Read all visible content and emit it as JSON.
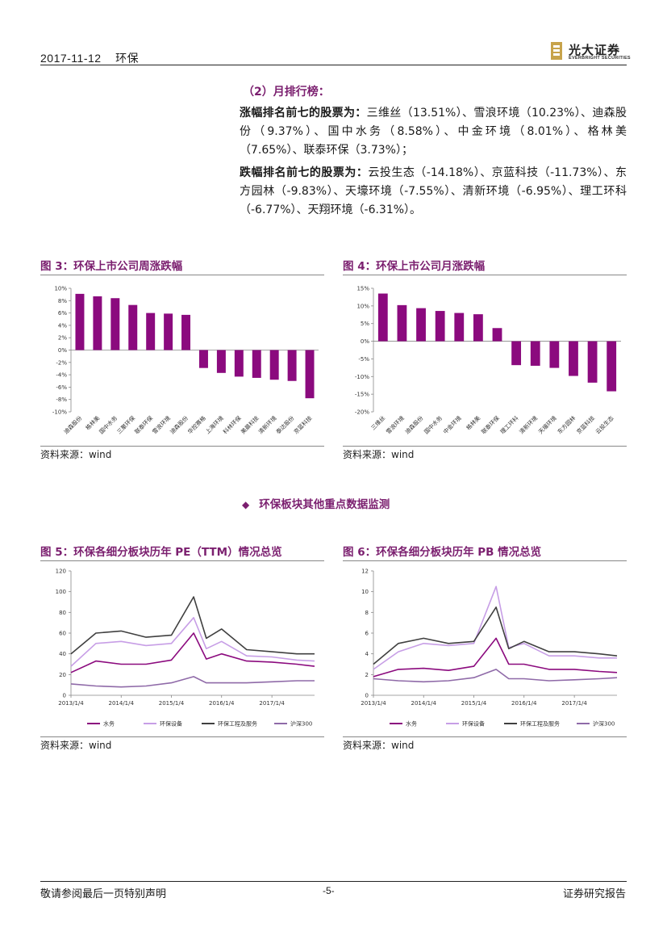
{
  "header": {
    "date": "2017-11-12",
    "sector": "环保",
    "logo_cn": "光大证券",
    "logo_en": "EVERBRIGHT SECURITIES"
  },
  "section": {
    "title": "（2）月排行榜：",
    "gainers_label": "涨幅排名前七的股票为：",
    "gainers_text": "三维丝（13.51%）、雪浪环境（10.23%）、迪森股份（9.37%）、国中水务（8.58%）、中金环境（8.01%）、格林美（7.65%）、联泰环保（3.73%）；",
    "losers_label": "跌幅排名前七的股票为：",
    "losers_text": "云投生态（-14.18%）、京蓝科技（-11.73%）、东方园林（-9.83%）、天壕环境（-7.55%）、清新环境（-6.95%）、理工环科（-6.77%）、天翔环境（-6.31%）。"
  },
  "fig3": {
    "title": "图 3：环保上市公司周涨跌幅",
    "source": "资料来源：wind",
    "chart_data": {
      "type": "bar",
      "categories": [
        "迪森股份",
        "格林美",
        "国中水务",
        "三聚环保",
        "联泰环保",
        "雪浪环境",
        "迪森股份",
        "华控赛格",
        "上海环境",
        "科林环保",
        "美晨科技",
        "清新环境",
        "泰达股份",
        "京蓝科技"
      ],
      "values": [
        9.1,
        8.7,
        8.4,
        7.3,
        6.0,
        5.9,
        5.7,
        -2.9,
        -3.7,
        -4.3,
        -4.5,
        -4.8,
        -5.0,
        -7.8
      ],
      "ylim": [
        -10,
        10
      ],
      "ticks": [
        "10%",
        "8%",
        "6%",
        "4%",
        "2%",
        "0%",
        "-2%",
        "-4%",
        "-6%",
        "-8%",
        "-10%"
      ],
      "color": "#8b0a7e"
    }
  },
  "fig4": {
    "title": "图 4：环保上市公司月涨跌幅",
    "source": "资料来源：wind",
    "chart_data": {
      "type": "bar",
      "categories": [
        "三维丝",
        "雪浪环境",
        "迪森股份",
        "国中水务",
        "中金环境",
        "格林美",
        "联泰环保",
        "理工环科",
        "清新环境",
        "天壕环境",
        "东方园林",
        "京蓝科技",
        "云投生态"
      ],
      "values": [
        13.51,
        10.23,
        9.37,
        8.58,
        8.01,
        7.65,
        3.73,
        -6.77,
        -6.95,
        -7.55,
        -9.83,
        -11.73,
        -14.18
      ],
      "ylim": [
        -20,
        15
      ],
      "ticks": [
        "15%",
        "10%",
        "5%",
        "0%",
        "-5%",
        "-10%",
        "-15%",
        "-20%"
      ],
      "color": "#8b0a7e"
    }
  },
  "monitor_title": "环保板块其他重点数据监测",
  "fig5": {
    "title": "图 5：环保各细分板块历年 PE（TTM）情况总览",
    "source": "资料来源：wind",
    "chart_data": {
      "type": "line",
      "x": [
        "2013/1/4",
        "2013/7/4",
        "2014/1/4",
        "2014/7/4",
        "2015/1/4",
        "2015/6/15",
        "2015/9/15",
        "2016/1/4",
        "2016/7/4",
        "2017/1/4",
        "2017/7/4",
        "2017/11/10"
      ],
      "xticks": [
        "2013/1/4",
        "2014/1/4",
        "2015/1/4",
        "2016/1/4",
        "2017/1/4"
      ],
      "ylim": [
        0,
        120
      ],
      "ticks": [
        "120",
        "100",
        "80",
        "60",
        "40",
        "20",
        "0"
      ],
      "series": [
        {
          "name": "水务",
          "color": "#8b0a7e",
          "values": [
            22,
            33,
            30,
            30,
            34,
            60,
            35,
            40,
            33,
            32,
            30,
            28
          ]
        },
        {
          "name": "环保设备",
          "color": "#c79ee6",
          "values": [
            28,
            50,
            52,
            48,
            50,
            75,
            45,
            52,
            38,
            37,
            34,
            33
          ]
        },
        {
          "name": "环保工程及服务",
          "color": "#404040",
          "values": [
            40,
            60,
            62,
            56,
            58,
            95,
            55,
            64,
            44,
            42,
            40,
            40
          ]
        },
        {
          "name": "沪深300",
          "color": "#8f6aa8",
          "values": [
            11,
            9,
            8,
            9,
            12,
            18,
            12,
            12,
            12,
            13,
            14,
            14
          ]
        }
      ]
    }
  },
  "fig6": {
    "title": "图 6：环保各细分板块历年 PB 情况总览",
    "source": "资料来源：wind",
    "chart_data": {
      "type": "line",
      "x": [
        "2013/1/4",
        "2013/7/4",
        "2014/1/4",
        "2014/7/4",
        "2015/1/4",
        "2015/6/15",
        "2015/9/15",
        "2016/1/4",
        "2016/7/4",
        "2017/1/4",
        "2017/7/4",
        "2017/11/10"
      ],
      "xticks": [
        "2013/1/4",
        "2014/1/4",
        "2015/1/4",
        "2016/1/4",
        "2017/1/4"
      ],
      "ylim": [
        0,
        12
      ],
      "ticks": [
        "12",
        "10",
        "8",
        "6",
        "4",
        "2",
        "0"
      ],
      "series": [
        {
          "name": "水务",
          "color": "#8b0a7e",
          "values": [
            1.8,
            2.5,
            2.6,
            2.4,
            2.8,
            5.5,
            3.0,
            3.0,
            2.5,
            2.5,
            2.3,
            2.2
          ]
        },
        {
          "name": "环保设备",
          "color": "#c79ee6",
          "values": [
            2.5,
            4.2,
            5.0,
            4.8,
            5.0,
            10.5,
            4.6,
            5.0,
            3.8,
            3.8,
            3.6,
            3.6
          ]
        },
        {
          "name": "环保工程及服务",
          "color": "#404040",
          "values": [
            3.0,
            5.0,
            5.5,
            5.0,
            5.2,
            8.5,
            4.5,
            5.2,
            4.2,
            4.2,
            4.0,
            3.8
          ]
        },
        {
          "name": "沪深300",
          "color": "#8f6aa8",
          "values": [
            1.6,
            1.4,
            1.3,
            1.4,
            1.7,
            2.5,
            1.6,
            1.6,
            1.4,
            1.5,
            1.6,
            1.7
          ]
        }
      ]
    }
  },
  "footer": {
    "disclaimer": "敬请参阅最后一页特别声明",
    "page": "-5-",
    "doc_type": "证券研究报告"
  }
}
